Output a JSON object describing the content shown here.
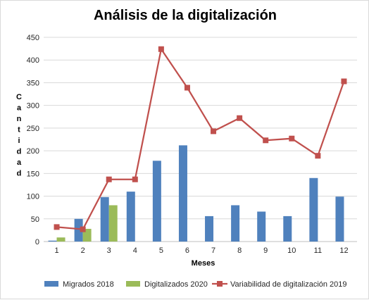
{
  "chart_data": {
    "type": "bar",
    "title": "Análisis de la digitalización",
    "xlabel": "Meses",
    "ylabel": "Cantidad",
    "ylim": [
      0,
      450
    ],
    "yticks": [
      0,
      50,
      100,
      150,
      200,
      250,
      300,
      350,
      400,
      450
    ],
    "grid": true,
    "legend_position": "bottom",
    "categories": [
      "1",
      "2",
      "3",
      "4",
      "5",
      "6",
      "7",
      "8",
      "9",
      "10",
      "11",
      "12"
    ],
    "series": [
      {
        "name": "Migrados 2018",
        "type": "bar",
        "color": "#4f81bd",
        "values": [
          2,
          50,
          98,
          110,
          178,
          212,
          56,
          80,
          66,
          56,
          140,
          99
        ]
      },
      {
        "name": "Digitalizados 2020",
        "type": "bar",
        "color": "#9bbb59",
        "values": [
          9,
          28,
          80,
          null,
          null,
          null,
          null,
          null,
          null,
          null,
          null,
          null
        ]
      },
      {
        "name": "Variabilidad de digitalización 2019",
        "type": "line",
        "color": "#c0504d",
        "marker": "square",
        "values": [
          32,
          27,
          137,
          137,
          424,
          339,
          243,
          272,
          223,
          227,
          189,
          353
        ]
      }
    ]
  }
}
